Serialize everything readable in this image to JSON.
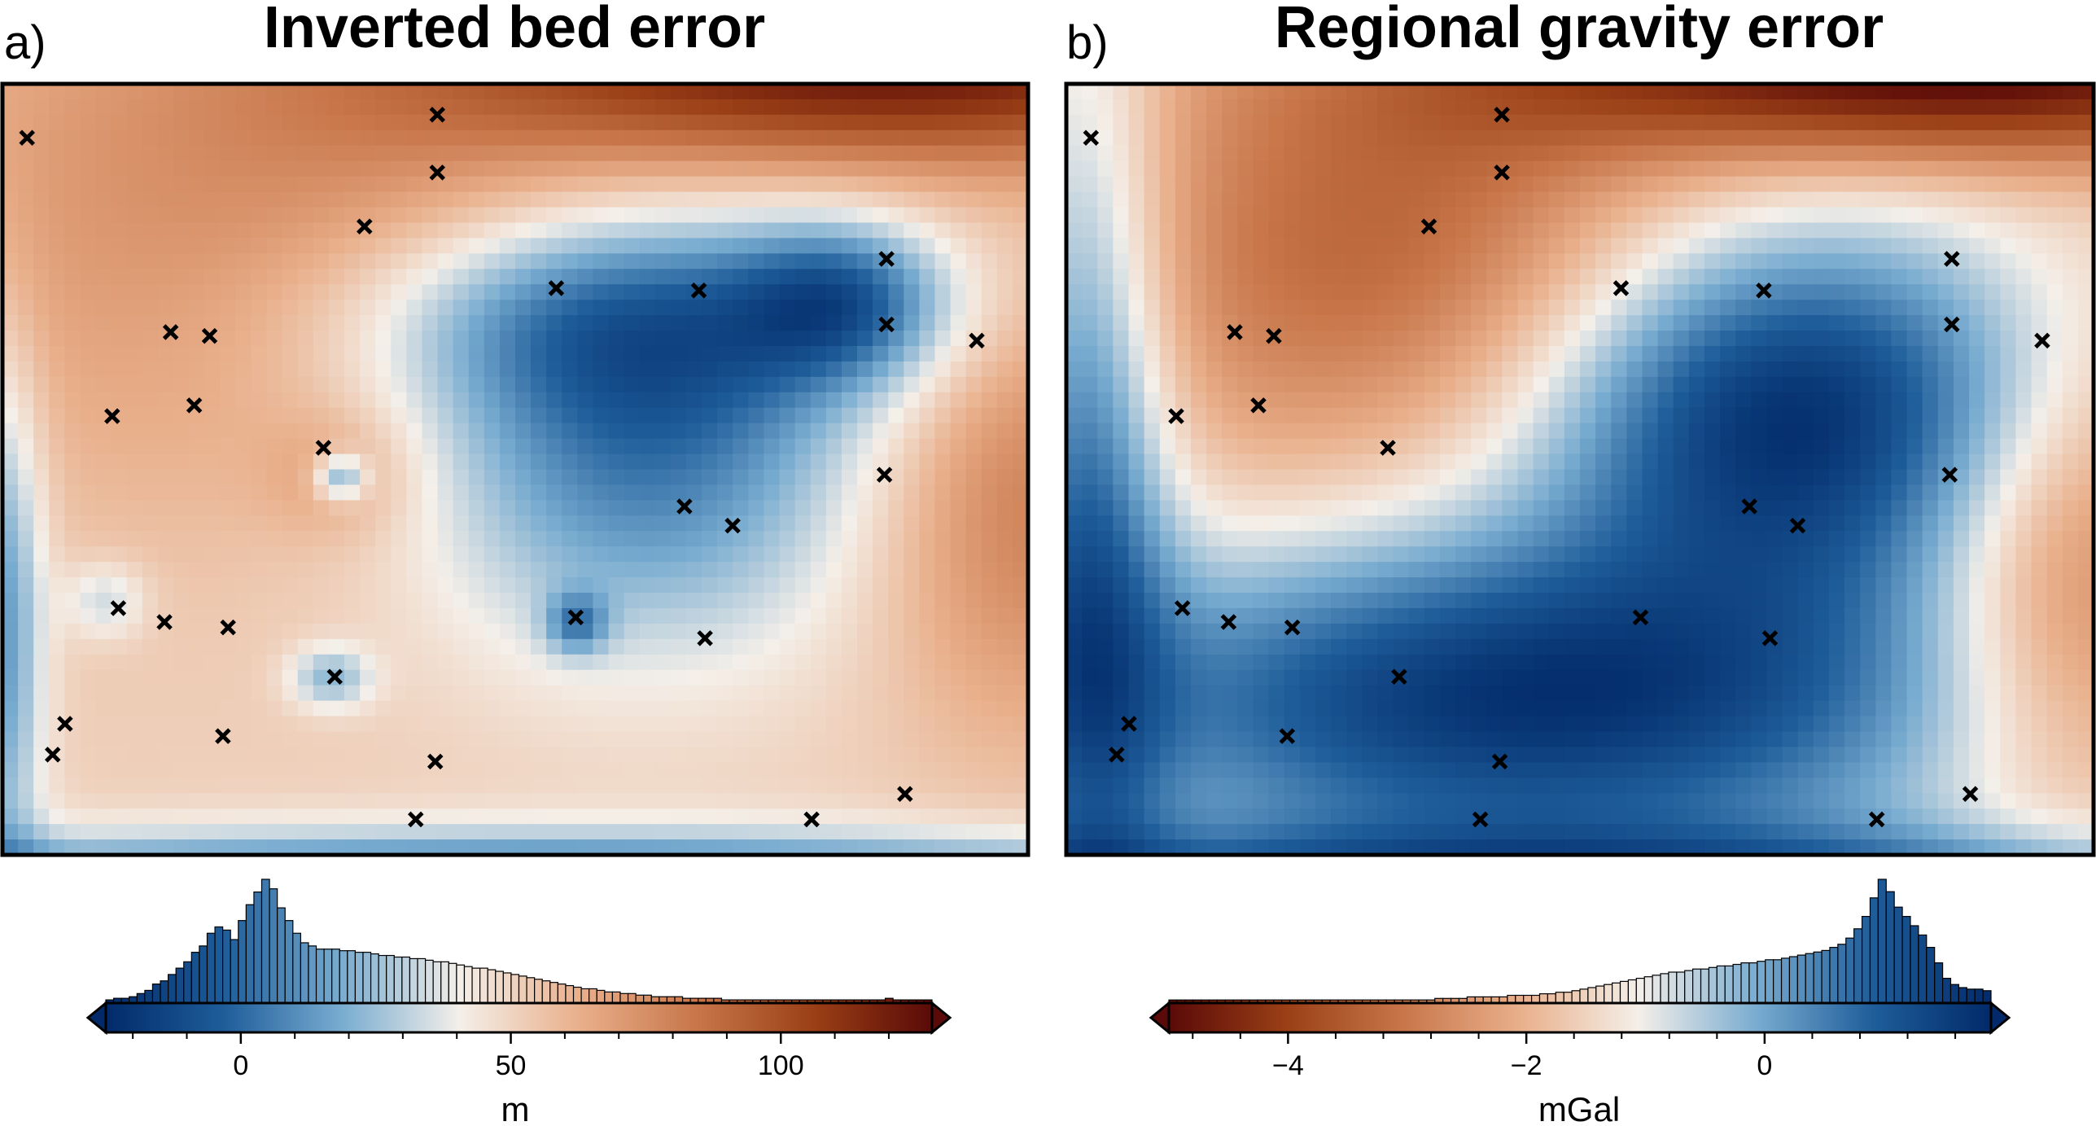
{
  "chart_data": [
    {
      "type": "heatmap",
      "panel_label": "a)",
      "title": "Inverted bed error",
      "colorbar": {
        "label": "m",
        "range": [
          -25,
          128
        ],
        "ticks": [
          0,
          50,
          100
        ],
        "tick_labels": [
          "0",
          "50",
          "100"
        ],
        "extend": "both",
        "colormap": [
          "#022a6a",
          "#1e5d9a",
          "#79acd0",
          "#f4efe9",
          "#e9b08c",
          "#c8764a",
          "#9a3f16",
          "#5a0a08"
        ]
      },
      "histogram_counts": [
        2,
        3,
        3,
        4,
        6,
        8,
        12,
        14,
        18,
        22,
        26,
        32,
        36,
        44,
        48,
        46,
        40,
        52,
        62,
        70,
        78,
        72,
        60,
        52,
        44,
        38,
        36,
        34,
        34,
        34,
        33,
        33,
        32,
        32,
        31,
        30,
        30,
        29,
        29,
        28,
        28,
        27,
        26,
        26,
        25,
        24,
        23,
        22,
        22,
        21,
        20,
        19,
        18,
        17,
        16,
        15,
        14,
        13,
        12,
        11,
        10,
        9,
        9,
        8,
        7,
        7,
        6,
        6,
        5,
        5,
        4,
        4,
        4,
        4,
        3,
        3,
        3,
        3,
        3,
        2,
        2,
        2,
        2,
        2,
        2,
        2,
        2,
        2,
        2,
        2,
        2,
        2,
        2,
        2,
        2,
        2,
        2,
        2,
        2,
        2,
        3,
        2,
        2,
        2,
        2,
        2
      ],
      "control_points": [
        {
          "x": 0.024,
          "y": 0.07
        },
        {
          "x": 0.424,
          "y": 0.04
        },
        {
          "x": 0.424,
          "y": 0.115
        },
        {
          "x": 0.353,
          "y": 0.185
        },
        {
          "x": 0.54,
          "y": 0.265
        },
        {
          "x": 0.679,
          "y": 0.268
        },
        {
          "x": 0.862,
          "y": 0.227
        },
        {
          "x": 0.862,
          "y": 0.312
        },
        {
          "x": 0.95,
          "y": 0.333
        },
        {
          "x": 0.164,
          "y": 0.322
        },
        {
          "x": 0.202,
          "y": 0.327
        },
        {
          "x": 0.107,
          "y": 0.431
        },
        {
          "x": 0.187,
          "y": 0.417
        },
        {
          "x": 0.313,
          "y": 0.472
        },
        {
          "x": 0.86,
          "y": 0.507
        },
        {
          "x": 0.665,
          "y": 0.548
        },
        {
          "x": 0.712,
          "y": 0.573
        },
        {
          "x": 0.113,
          "y": 0.68
        },
        {
          "x": 0.158,
          "y": 0.698
        },
        {
          "x": 0.22,
          "y": 0.705
        },
        {
          "x": 0.559,
          "y": 0.692
        },
        {
          "x": 0.685,
          "y": 0.719
        },
        {
          "x": 0.324,
          "y": 0.769
        },
        {
          "x": 0.061,
          "y": 0.83
        },
        {
          "x": 0.049,
          "y": 0.87
        },
        {
          "x": 0.215,
          "y": 0.846
        },
        {
          "x": 0.422,
          "y": 0.879
        },
        {
          "x": 0.403,
          "y": 0.954
        },
        {
          "x": 0.789,
          "y": 0.954
        },
        {
          "x": 0.88,
          "y": 0.921
        }
      ]
    },
    {
      "type": "heatmap",
      "panel_label": "b)",
      "title": "Regional gravity error",
      "colorbar": {
        "label": "mGal",
        "range": [
          -5,
          1.9
        ],
        "ticks": [
          -4,
          -2,
          0
        ],
        "tick_labels": [
          "−4",
          "−2",
          "0"
        ],
        "extend": "both",
        "colormap": [
          "#5a0a08",
          "#9a3f16",
          "#c8764a",
          "#e9b08c",
          "#f4efe9",
          "#79acd0",
          "#1e5d9a",
          "#022a6a"
        ]
      },
      "histogram_counts": [
        2,
        2,
        2,
        2,
        2,
        2,
        2,
        2,
        2,
        2,
        2,
        2,
        2,
        2,
        2,
        2,
        2,
        2,
        2,
        2,
        2,
        2,
        2,
        2,
        2,
        2,
        2,
        2,
        2,
        2,
        2,
        2,
        2,
        3,
        3,
        3,
        3,
        4,
        4,
        4,
        4,
        4,
        5,
        5,
        5,
        5,
        6,
        6,
        7,
        7,
        8,
        9,
        10,
        11,
        12,
        13,
        14,
        15,
        16,
        17,
        18,
        19,
        20,
        20,
        21,
        22,
        22,
        23,
        24,
        24,
        25,
        26,
        26,
        27,
        28,
        28,
        29,
        30,
        31,
        32,
        33,
        34,
        36,
        38,
        42,
        48,
        56,
        68,
        80,
        72,
        62,
        56,
        50,
        44,
        36,
        26,
        16,
        12,
        10,
        9,
        9,
        8
      ]
    }
  ]
}
